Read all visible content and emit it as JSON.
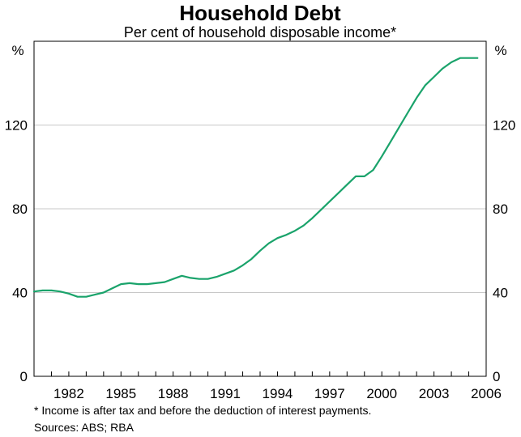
{
  "chart_data": {
    "type": "line",
    "title": "Household Debt",
    "subtitle": "Per cent of household disposable income*",
    "ylabel_left": "%",
    "ylabel_right": "%",
    "ylim": [
      0,
      160
    ],
    "yticks": [
      0,
      40,
      80,
      120
    ],
    "ytick_labels": [
      "0",
      "40",
      "80",
      "120"
    ],
    "xlim": [
      1980,
      2006
    ],
    "xticks": [
      1982,
      1985,
      1988,
      1991,
      1994,
      1997,
      2000,
      2003,
      2006
    ],
    "xtick_labels": [
      "1982",
      "1985",
      "1988",
      "1991",
      "1994",
      "1997",
      "2000",
      "2003",
      "2006"
    ],
    "grid": true,
    "line_color": "#1aa36b",
    "series": [
      {
        "x": [
          1980.0,
          1980.5,
          1981.0,
          1981.5,
          1982.0,
          1982.5,
          1983.0,
          1983.5,
          1984.0,
          1984.5,
          1985.0,
          1985.5,
          1986.0,
          1986.5,
          1987.0,
          1987.5,
          1988.0,
          1988.5,
          1989.0,
          1989.5,
          1990.0,
          1990.5,
          1991.0,
          1991.5,
          1992.0,
          1992.5,
          1993.0,
          1993.5,
          1994.0,
          1994.5,
          1995.0,
          1995.5,
          1996.0,
          1996.5,
          1997.0,
          1997.5,
          1998.0,
          1998.5,
          1999.0,
          1999.5,
          2000.0,
          2000.5,
          2001.0,
          2001.5,
          2002.0,
          2002.5,
          2003.0,
          2003.5,
          2004.0,
          2004.5,
          2005.0,
          2005.5
        ],
        "values": [
          40.5,
          41,
          41,
          40.5,
          39.5,
          38,
          38,
          39,
          40,
          42,
          44,
          44.5,
          44,
          44,
          44.5,
          45,
          46.5,
          48,
          47,
          46.5,
          46.5,
          47.5,
          49,
          50.5,
          53,
          56,
          60,
          63.5,
          66,
          67.5,
          69.5,
          72,
          75.5,
          79.5,
          83.5,
          87.5,
          91.5,
          95.5,
          95.5,
          98.5,
          105,
          112,
          119,
          126,
          133,
          139,
          143,
          147,
          150,
          152,
          152,
          152
        ],
        "values_note": ""
      }
    ]
  },
  "footnote": "*   Income is after tax and before the deduction of interest payments.",
  "sources": "Sources: ABS; RBA"
}
